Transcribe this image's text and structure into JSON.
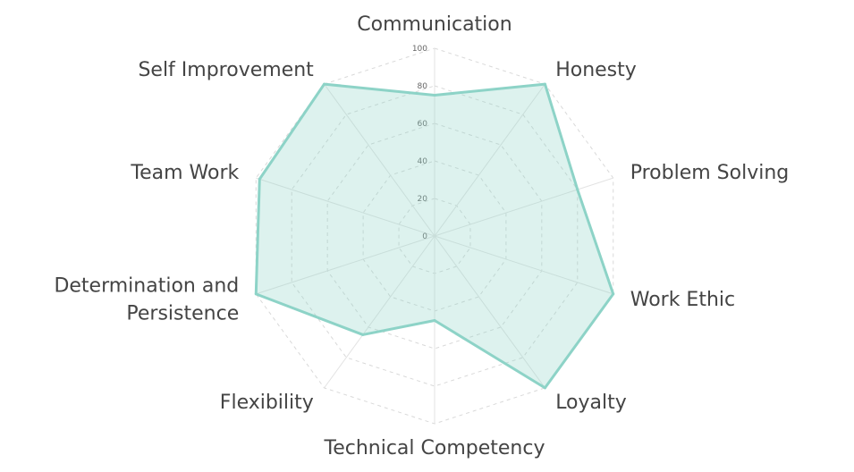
{
  "chart_data": {
    "type": "radar",
    "categories": [
      "Communication",
      "Honesty",
      "Problem Solving",
      "Work Ethic",
      "Loyalty",
      "Technical Competency",
      "Flexibility",
      "Determination and\nPersistence",
      "Team Work",
      "Self Improvement"
    ],
    "series": [
      {
        "values": [
          75,
          100,
          80,
          100,
          100,
          45,
          65,
          100,
          98,
          100
        ]
      }
    ],
    "rlim": [
      0,
      100
    ],
    "ticks": [
      0,
      20,
      40,
      60,
      80,
      100
    ],
    "grid": true,
    "colors": {
      "stroke": "#8dd3c7",
      "fill": "rgba(141, 211, 199, 0.3)"
    }
  }
}
